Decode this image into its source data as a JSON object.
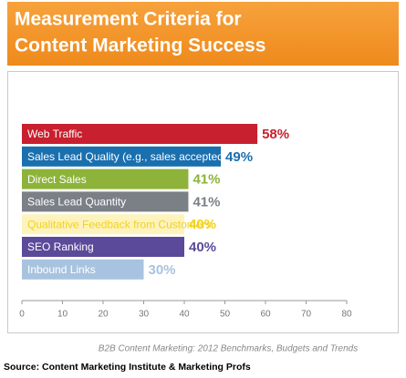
{
  "chart_data": {
    "type": "bar",
    "orientation": "horizontal",
    "title": [
      "Measurement Criteria for",
      "Content Marketing Success"
    ],
    "categories": [
      "Web Traffic",
      "Sales Lead Quality (e.g., sales accepted leads)",
      "Direct Sales",
      "Sales Lead Quantity",
      "Qualitative Feedback from Customers",
      "SEO Ranking",
      "Inbound Links"
    ],
    "values": [
      58,
      49,
      41,
      41,
      40,
      40,
      30
    ],
    "value_labels": [
      "58%",
      "49%",
      "41%",
      "41%",
      "40%",
      "40%",
      "30%"
    ],
    "colors": [
      "#c8202f",
      "#1a6fae",
      "#8db33a",
      "#7b8087",
      "#fdf3bd",
      "#5b4a99",
      "#a8c3e0"
    ],
    "label_colors": [
      "#c8202f",
      "#1a6fae",
      "#8db33a",
      "#7b8087",
      "#f2d21a",
      "#5b4a99",
      "#a8c3e0"
    ],
    "category_label_colors": [
      "#ffffff",
      "#ffffff",
      "#ffffff",
      "#ffffff",
      "#f2d21a",
      "#ffffff",
      "#ffffff"
    ],
    "xlim": [
      0,
      80
    ],
    "xticks": [
      0,
      10,
      20,
      30,
      40,
      50,
      60,
      70,
      80
    ],
    "subtitle": "B2B Content Marketing: 2012 Benchmarks, Budgets and Trends",
    "source": "Source: Content Marketing Institute & Marketing Profs"
  }
}
